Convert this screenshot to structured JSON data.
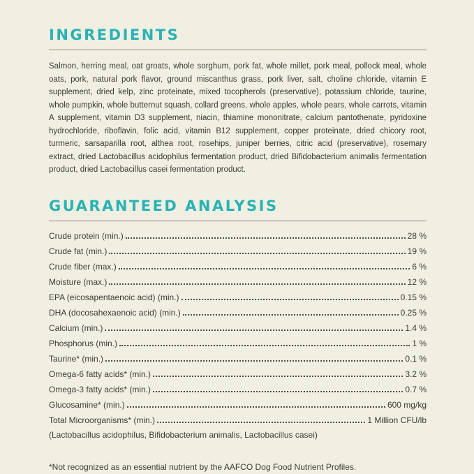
{
  "page": {
    "background_color": "#f1efe2",
    "accent_color": "#29b2b4",
    "text_color": "#3b3b36"
  },
  "ingredients": {
    "title": "INGREDIENTS",
    "body": "Salmon, herring meal, oat groats, whole sorghum, pork fat, whole millet, pork meal, pollock meal, whole oats, pork, natural pork flavor, ground miscanthus grass, pork liver, salt, choline chloride, vitamin E supplement, dried kelp, zinc proteinate, mixed tocopherols (preservative), potassium chloride, taurine, whole pumpkin, whole butternut squash, collard greens, whole apples, whole pears, whole carrots, vitamin A supplement, vitamin D3 supplement, niacin, thiamine mononitrate, calcium pantothenate, pyridoxine hydrochloride, riboflavin, folic acid, vitamin B12 supplement, copper proteinate, dried chicory root, turmeric, sarsaparilla root, althea root, rosehips, juniper berries, citric acid (preservative), rosemary extract, dried Lactobacillus acidophilus fermentation product, dried Bifidobacterium animalis fermentation product, dried Lactobacillus casei fermentation product."
  },
  "analysis": {
    "title": "GUARANTEED ANALYSIS",
    "rows": [
      {
        "label": "Crude protein (min.)",
        "value": "28 %"
      },
      {
        "label": "Crude fat (min.)",
        "value": "19 %"
      },
      {
        "label": "Crude fiber (max.)",
        "value": "6 %"
      },
      {
        "label": "Moisture (max.)",
        "value": "12 %"
      },
      {
        "label": "EPA (eicosapentaenoic acid) (min.)",
        "value": "0.15 %"
      },
      {
        "label": "DHA (docosahexaenoic acid) (min.)",
        "value": "0.25 %"
      },
      {
        "label": "Calcium (min.)",
        "value": "1.4 %"
      },
      {
        "label": "Phosphorus (min.)",
        "value": "1 %"
      },
      {
        "label": "Taurine* (min.)",
        "value": "0.1 %"
      },
      {
        "label": "Omega-6 fatty acids* (min.)",
        "value": "3.2 %"
      },
      {
        "label": "Omega-3 fatty acids* (min.)",
        "value": "0.7 %"
      },
      {
        "label": "Glucosamine* (min.)",
        "value": "600 mg/kg"
      },
      {
        "label": "Total Microorganisms* (min.)",
        "value": "1 Million CFU/lb",
        "note": "(Lactobacillus acidophilus, Bifidobacterium animalis, Lactobacillus casei)"
      }
    ],
    "footnote": "*Not recognized as an essential nutrient by the AAFCO Dog Food Nutrient Profiles."
  }
}
